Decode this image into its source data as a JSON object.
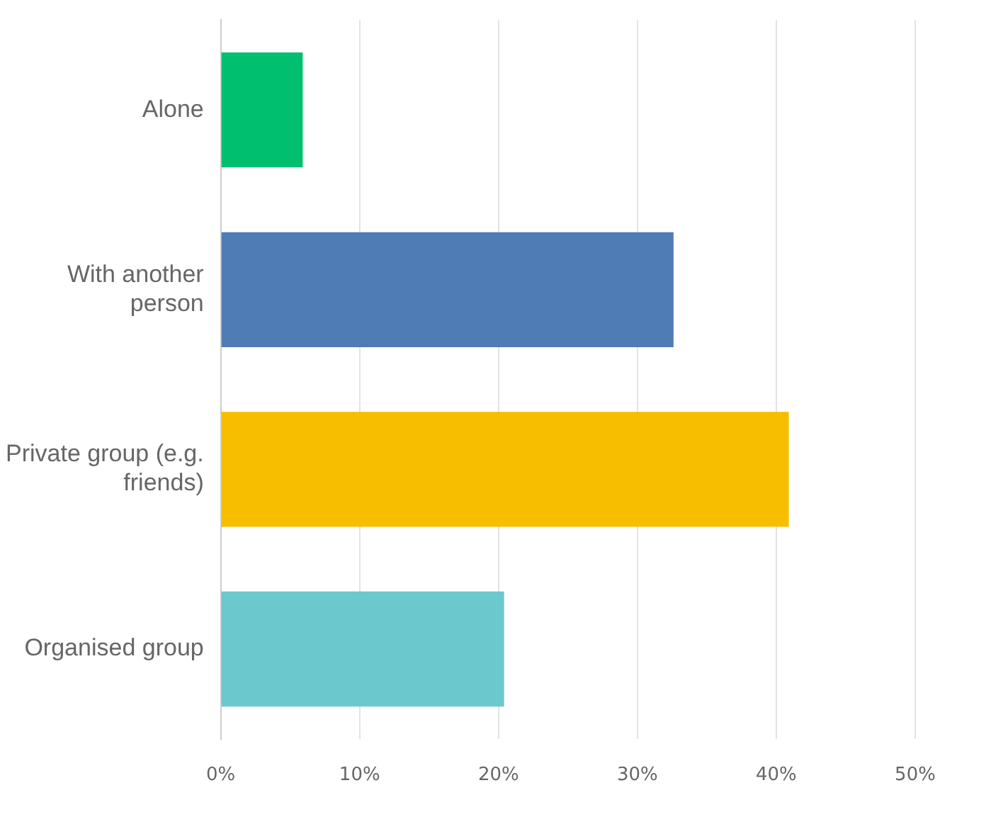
{
  "chart_data": {
    "type": "bar",
    "orientation": "horizontal",
    "categories": [
      "Alone",
      "With another person",
      "Private group (e.g. friends)",
      "Organised group"
    ],
    "values": [
      5.9,
      32.6,
      40.9,
      20.4
    ],
    "colors": [
      "#00bf6f",
      "#507cb6",
      "#f7be00",
      "#6bc8cd"
    ],
    "xlim": [
      0,
      50
    ],
    "xticks": [
      {
        "value": 0,
        "label": "0%"
      },
      {
        "value": 10,
        "label": "10%"
      },
      {
        "value": 20,
        "label": "20%"
      },
      {
        "value": 30,
        "label": "30%"
      },
      {
        "value": 40,
        "label": "40%"
      },
      {
        "value": 50,
        "label": "50%"
      }
    ],
    "grid": "x",
    "legend": false
  }
}
